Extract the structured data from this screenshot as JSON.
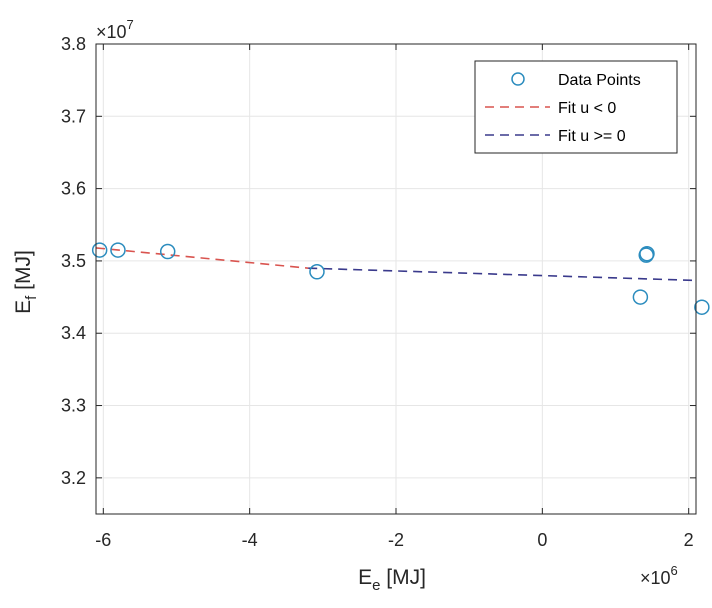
{
  "chart_data": {
    "type": "scatter",
    "xlabel": {
      "main": "E",
      "sub": "e",
      "unit": " [MJ]"
    },
    "ylabel": {
      "main": "E",
      "sub": "f",
      "unit": " [MJ]"
    },
    "x_multiplier": {
      "base": "×10",
      "exp": "6"
    },
    "y_multiplier": {
      "base": "×10",
      "exp": "7"
    },
    "xlim": [
      -6.1,
      2.1
    ],
    "ylim": [
      3.15,
      3.8
    ],
    "x_ticks": [
      -6,
      -4,
      -2,
      0,
      2
    ],
    "x_tick_labels": [
      "-6",
      "-4",
      "-2",
      "0",
      "2"
    ],
    "y_ticks": [
      3.2,
      3.3,
      3.4,
      3.5,
      3.6,
      3.7,
      3.8
    ],
    "y_tick_labels": [
      "3.2",
      "3.3",
      "3.4",
      "3.5",
      "3.6",
      "3.7",
      "3.8"
    ],
    "grid": true,
    "legend_position": "top-right",
    "series": [
      {
        "name": "Data Points",
        "kind": "markers",
        "color": "#2b8cbe",
        "x": [
          -6.05,
          -5.8,
          -5.12,
          -3.08,
          1.34,
          1.42,
          1.43,
          2.18
        ],
        "y": [
          3.515,
          3.515,
          3.513,
          3.485,
          3.45,
          3.508,
          3.51,
          3.436
        ]
      },
      {
        "name": "Fit u < 0",
        "kind": "dashed-line",
        "color": "#d9544f",
        "x": [
          -6.1,
          -3.2
        ],
        "y": [
          3.518,
          3.49
        ]
      },
      {
        "name": "Fit u >= 0",
        "kind": "dashed-line",
        "color": "#3a3a8c",
        "x": [
          -3.2,
          2.1
        ],
        "y": [
          3.49,
          3.473
        ]
      }
    ]
  }
}
